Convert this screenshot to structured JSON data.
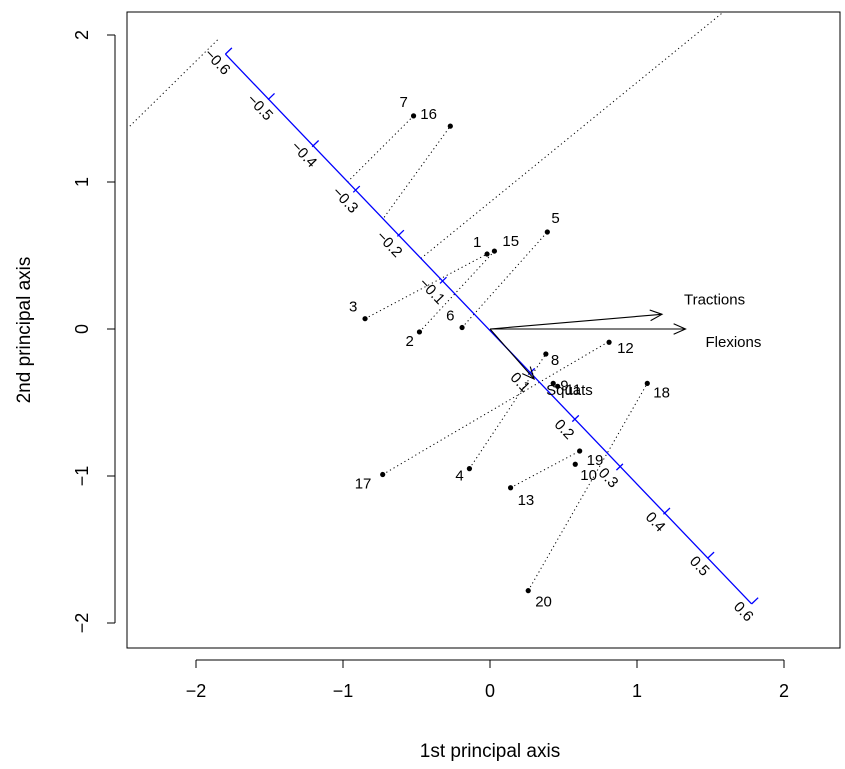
{
  "chart_data": {
    "type": "scatter",
    "title": "",
    "xlabel": "1st principal axis",
    "ylabel": "2nd principal axis",
    "xlim": [
      -2.45,
      2.45
    ],
    "ylim": [
      -2.2,
      2.15
    ],
    "x_ticks": [
      -2,
      -1,
      0,
      1,
      2
    ],
    "y_ticks": [
      -2,
      -1,
      0,
      1,
      2
    ],
    "x_tick_labels": [
      "−2",
      "−1",
      "0",
      "1",
      "2"
    ],
    "y_tick_labels": [
      "−2",
      "−1",
      "0",
      "1",
      "2"
    ],
    "grid": false,
    "points": [
      {
        "label": "1",
        "x": -0.02,
        "y": 0.51
      },
      {
        "label": "2",
        "x": -0.48,
        "y": -0.02
      },
      {
        "label": "3",
        "x": -0.85,
        "y": 0.07
      },
      {
        "label": "4",
        "x": -0.14,
        "y": -0.95
      },
      {
        "label": "5",
        "x": 0.39,
        "y": 0.66
      },
      {
        "label": "6",
        "x": -0.19,
        "y": 0.01
      },
      {
        "label": "7",
        "x": -0.52,
        "y": 1.45
      },
      {
        "label": "8",
        "x": 0.38,
        "y": -0.17
      },
      {
        "label": "9",
        "x": 0.43,
        "y": -0.37
      },
      {
        "label": "10",
        "x": 0.58,
        "y": -0.92
      },
      {
        "label": "11",
        "x": 0.46,
        "y": -0.39
      },
      {
        "label": "12",
        "x": 0.81,
        "y": -0.09
      },
      {
        "label": "13",
        "x": 0.14,
        "y": -1.08
      },
      {
        "label": "15",
        "x": 0.03,
        "y": 0.53
      },
      {
        "label": "16",
        "x": -0.27,
        "y": 1.38
      },
      {
        "label": "17",
        "x": -0.73,
        "y": -0.99
      },
      {
        "label": "18",
        "x": 1.07,
        "y": -0.37
      },
      {
        "label": "19",
        "x": 0.61,
        "y": -0.83
      },
      {
        "label": "20",
        "x": 0.26,
        "y": -1.78
      }
    ],
    "variables": [
      {
        "name": "Tractions",
        "x": 1.17,
        "y": 0.1
      },
      {
        "name": "Flexions",
        "x": 1.33,
        "y": 0.0
      },
      {
        "name": "Squats",
        "x": 0.3,
        "y": -0.34
      }
    ],
    "prediction_axis": {
      "color": "#0000ff",
      "from": [
        -1.8,
        1.87
      ],
      "to": [
        1.78,
        -1.87
      ],
      "ticks": [
        {
          "label": "−0.6",
          "x": -1.8,
          "y": 1.87
        },
        {
          "label": "−0.5",
          "x": -1.51,
          "y": 1.56
        },
        {
          "label": "−0.4",
          "x": -1.21,
          "y": 1.24
        },
        {
          "label": "−0.3",
          "x": -0.93,
          "y": 0.93
        },
        {
          "label": "−0.2",
          "x": -0.63,
          "y": 0.63
        },
        {
          "label": "−0.1",
          "x": -0.34,
          "y": 0.31
        },
        {
          "label": "0.1",
          "x": 0.26,
          "y": -0.31
        },
        {
          "label": "0.2",
          "x": 0.56,
          "y": -0.63
        },
        {
          "label": "0.3",
          "x": 0.86,
          "y": -0.96
        },
        {
          "label": "0.4",
          "x": 1.18,
          "y": -1.26
        },
        {
          "label": "0.5",
          "x": 1.48,
          "y": -1.56
        },
        {
          "label": "0.6",
          "x": 1.78,
          "y": -1.87
        }
      ]
    },
    "projection_lines": [
      {
        "from": [
          -2.45,
          1.38
        ],
        "to": [
          -1.85,
          1.97
        ]
      },
      {
        "from": [
          -0.97,
          1.0
        ],
        "to": [
          -0.52,
          1.45
        ]
      },
      {
        "from": [
          -0.72,
          0.76
        ],
        "to": [
          -0.27,
          1.38
        ]
      },
      {
        "from": [
          -0.47,
          0.48
        ],
        "to": [
          1.58,
          2.15
        ]
      },
      {
        "from": [
          -0.85,
          0.07
        ],
        "to": [
          -0.02,
          0.51
        ]
      },
      {
        "from": [
          -0.48,
          -0.02
        ],
        "to": [
          0.03,
          0.53
        ]
      },
      {
        "from": [
          -0.19,
          0.01
        ],
        "to": [
          0.39,
          0.66
        ]
      },
      {
        "from": [
          -0.73,
          -0.99
        ],
        "to": [
          0.8,
          -0.09
        ]
      },
      {
        "from": [
          -0.14,
          -0.95
        ],
        "to": [
          0.38,
          -0.17
        ]
      },
      {
        "from": [
          0.14,
          -1.08
        ],
        "to": [
          0.61,
          -0.83
        ]
      },
      {
        "from": [
          0.26,
          -1.78
        ],
        "to": [
          1.07,
          -0.37
        ]
      }
    ]
  }
}
